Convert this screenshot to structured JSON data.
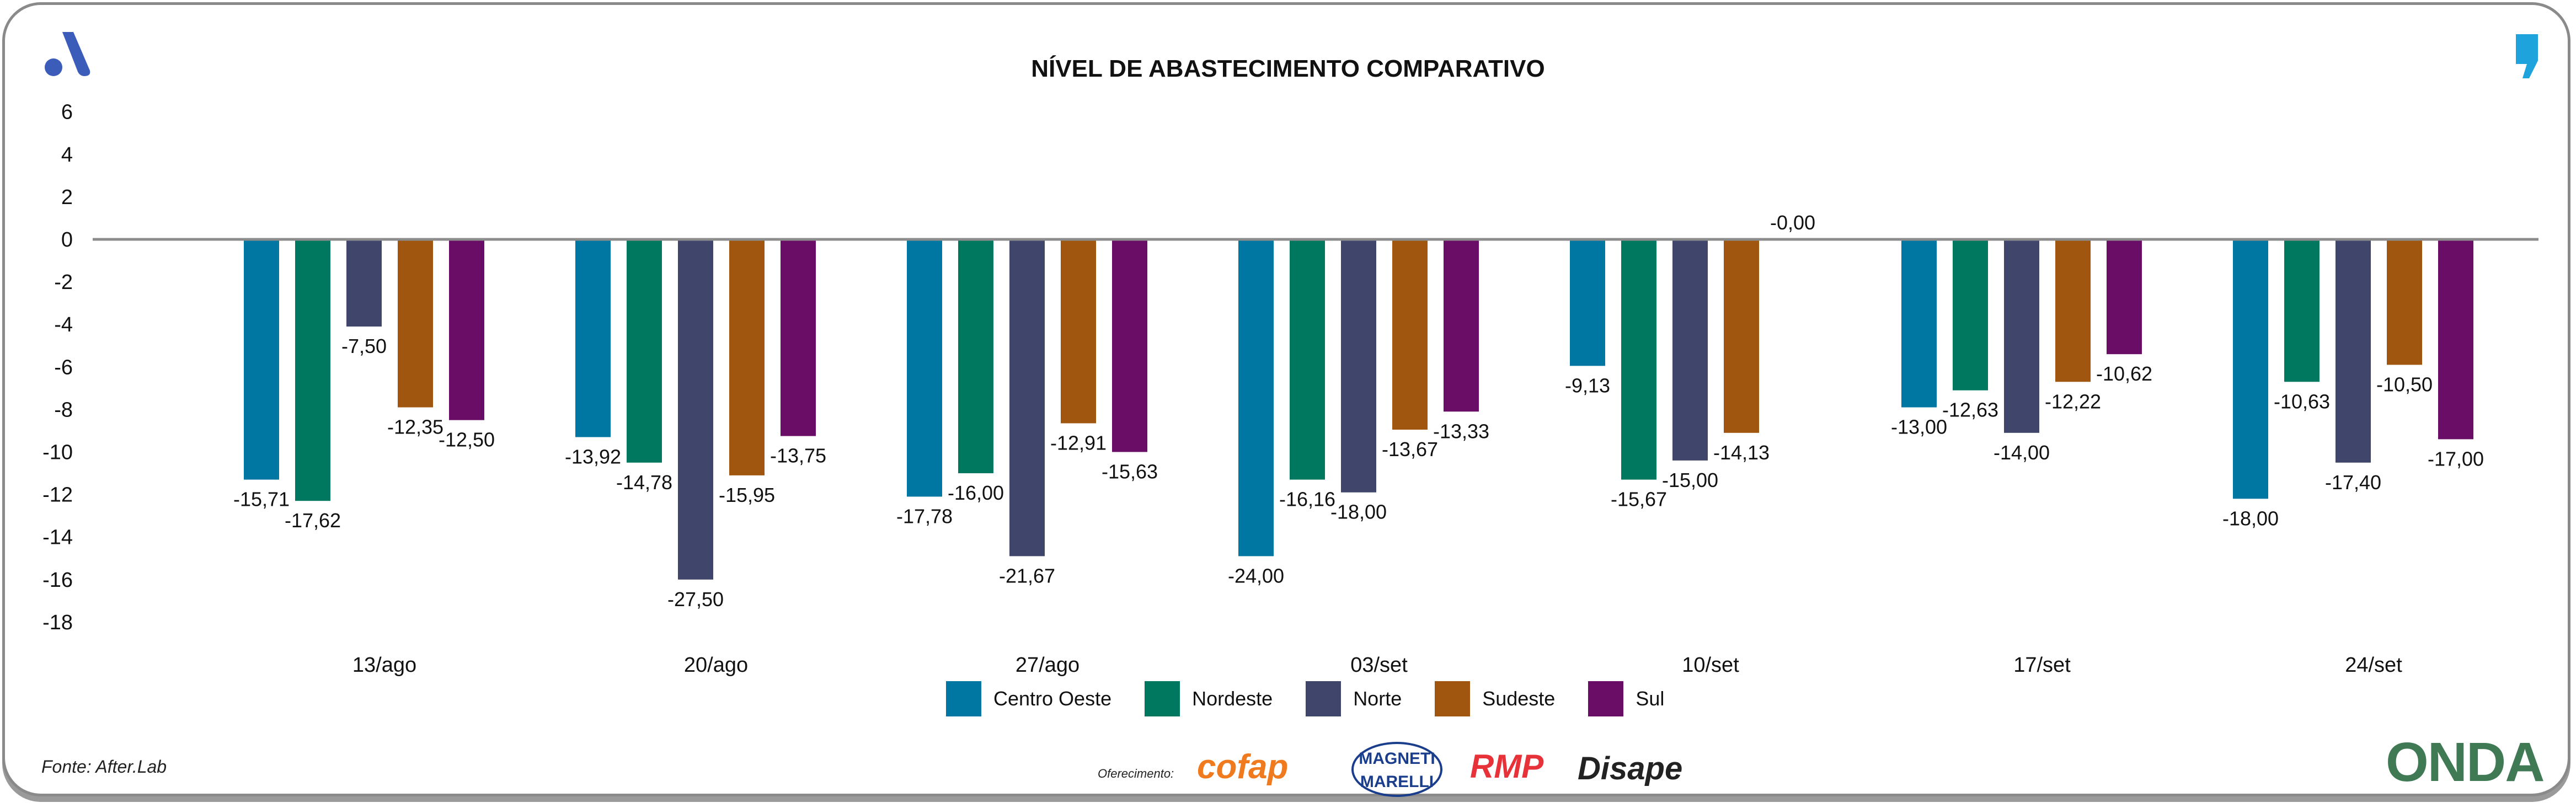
{
  "chart_data": {
    "type": "bar",
    "title": "NÍVEL DE ABASTECIMENTO COMPARATIVO",
    "xlabel": "",
    "ylabel": "",
    "ylim": [
      -18,
      6
    ],
    "yticks": [
      6,
      4,
      2,
      0,
      -2,
      -4,
      -6,
      -8,
      -10,
      -12,
      -14,
      -16,
      -18
    ],
    "ytick_labels": [
      "6",
      "4",
      "2",
      "0",
      "-2",
      "-4",
      "-6",
      "-8",
      "-10",
      "-12",
      "-14",
      "-16",
      "-18"
    ],
    "grid": false,
    "legend_position": "bottom-center",
    "categories": [
      "13/ago",
      "20/ago",
      "27/ago",
      "03/set",
      "10/set",
      "17/set",
      "24/set"
    ],
    "series": [
      {
        "name": "Centro Oeste",
        "color": "#0077A3",
        "labels": [
          "-15,71",
          "-13,92",
          "-17,78",
          "-24,00",
          "-9,13",
          "-13,00",
          "-18,00"
        ],
        "bar_values": [
          -11.3,
          -9.3,
          -12.1,
          -14.9,
          -5.95,
          -7.9,
          -12.2
        ]
      },
      {
        "name": "Nordeste",
        "color": "#00785F",
        "labels": [
          "-17,62",
          "-14,78",
          "-16,00",
          "-16,16",
          "-15,67",
          "-12,63",
          "-10,63"
        ],
        "bar_values": [
          -12.3,
          -10.5,
          -11.0,
          -11.3,
          -11.3,
          -7.1,
          -6.7
        ]
      },
      {
        "name": "Norte",
        "color": "#40466B",
        "labels": [
          "-7,50",
          "-27,50",
          "-21,67",
          "-18,00",
          "-15,00",
          "-14,00",
          "-17,40"
        ],
        "bar_values": [
          -4.1,
          -16.0,
          -14.9,
          -11.9,
          -10.4,
          -9.1,
          -10.5
        ]
      },
      {
        "name": "Sudeste",
        "color": "#A0560E",
        "labels": [
          "-12,35",
          "-15,95",
          "-12,91",
          "-13,67",
          "-14,13",
          "-12,22",
          "-10,50"
        ],
        "bar_values": [
          -7.9,
          -11.1,
          -8.65,
          -8.95,
          -9.1,
          -6.7,
          -5.9
        ]
      },
      {
        "name": "Sul",
        "color": "#6A0D66",
        "labels": [
          "-12,50",
          "-13,75",
          "-15,63",
          "-13,33",
          "-0,00",
          "-10,62",
          "-17,00"
        ],
        "bar_values": [
          -8.5,
          -9.25,
          -10.0,
          -8.1,
          0,
          -5.4,
          -9.4
        ]
      }
    ]
  },
  "footer": {
    "source": "Fonte: After.Lab",
    "offer_label": "Oferecimento:",
    "sponsors": [
      "cofap",
      "MAGNETI MARELLI",
      "RMP",
      "Disape"
    ],
    "brand": "ONDA"
  }
}
